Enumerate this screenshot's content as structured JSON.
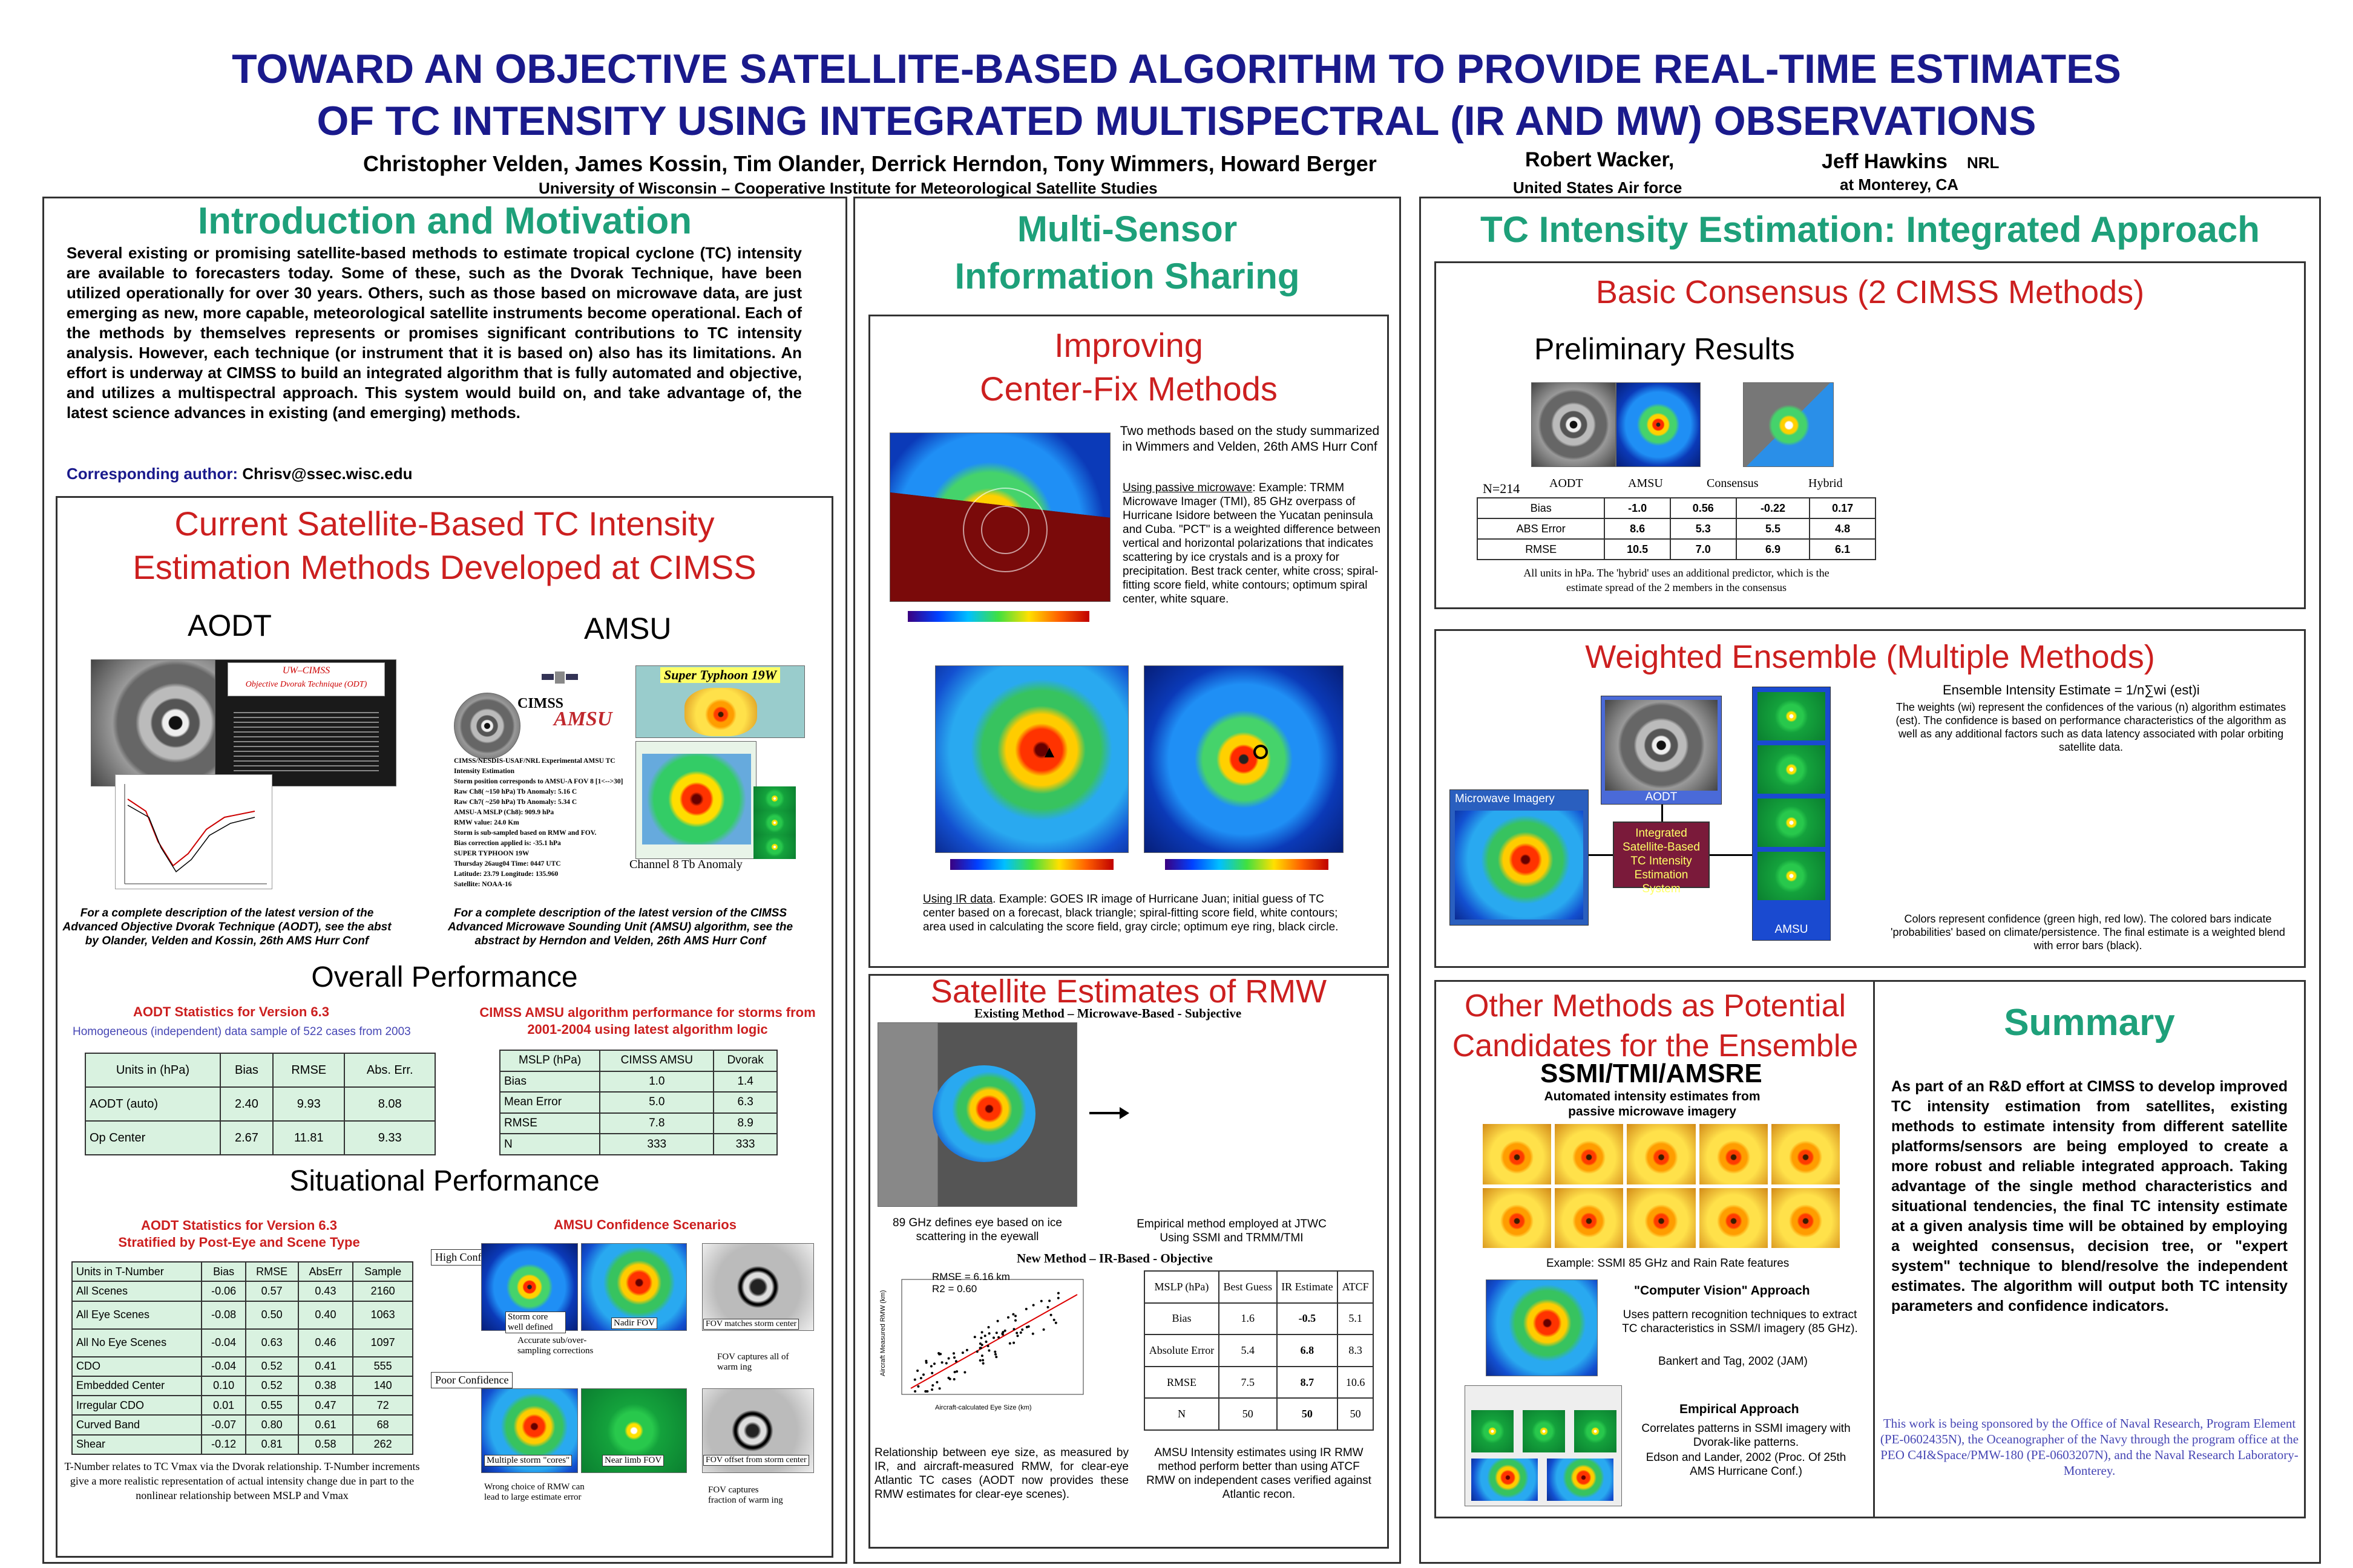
{
  "header": {
    "title_line1": "TOWARD AN OBJECTIVE SATELLITE-BASED ALGORITHM TO PROVIDE REAL-TIME ESTIMATES",
    "title_line2": "OF TC INTENSITY USING  INTEGRATED MULTISPECTRAL (IR AND MW) OBSERVATIONS",
    "authors": "Christopher Velden, James Kossin, Tim Olander, Derrick Herndon, Tony Wimmers, Howard Berger",
    "affiliation": "University of Wisconsin – Cooperative Institute for Meteorological Satellite Studies",
    "author2": "Robert Wacker,",
    "affil2": "United States Air force",
    "author3": "Jeff Hawkins",
    "author3_org": "NRL",
    "affil3": "at Monterey, CA"
  },
  "intro": {
    "heading": "Introduction and Motivation",
    "text": "Several existing or promising satellite-based methods to estimate tropical cyclone (TC) intensity are available to forecasters today. Some of these, such as the Dvorak Technique, have been utilized operationally for over 30 years. Others, such as those based on microwave data, are just emerging as new, more capable, meteorological satellite instruments become operational. Each of the methods by themselves represents or promises significant contributions to TC intensity analysis. However, each technique (or instrument that it is based on) also has its limitations. An effort is underway at CIMSS to build an integrated algorithm that is fully automated and objective, and utilizes a multispectral approach. This system would build on, and take advantage of, the latest science advances in existing (and emerging) methods.",
    "corr_label": "Corresponding author:",
    "corr_email": "Chrisv@ssec.wisc.edu"
  },
  "current": {
    "heading1": "Current Satellite-Based TC Intensity",
    "heading2": "Estimation Methods Developed at CIMSS",
    "aodt_label": "AODT",
    "amsu_label": "AMSU",
    "aodt_img_title": "UW–CIMSS",
    "aodt_img_sub": "Objective Dvorak Technique (ODT)",
    "amsu_logo": "CIMSS",
    "amsu_logo2": "AMSU",
    "super_typhoon": "Super Typhoon 19W",
    "amsu_readout": [
      "CIMSS/NESDIS-USAF/NRL Experimental AMSU TC Intensity Estimation",
      "Storm position corresponds to AMSU-A FOV  8  [1<-->30]",
      "Raw Ch8( ~150 hPa) Tb Anomaly: 5.16 C",
      "Raw Ch7( ~250 hPa) Tb Anomaly: 5.34 C",
      "AMSU-A MSLP (Ch8):               909.9 hPa",
      "RMW value:  24.0 Km",
      "Storm is sub-sampled based on RMW and FOV.",
      "Bias correction applied is: -35.1 hPa",
      "SUPER TYPHOON 19W",
      "Thursday 26aug04 Time: 0447 UTC",
      "Latitude: 23.79 Longitude: 135.960",
      "Satellite: NOAA-16"
    ],
    "channel_label": "Channel 8 Tb Anomaly",
    "aodt_caption": "For a complete description of the latest version of the Advanced Objective Dvorak Technique (AODT), see the abst by Olander, Velden and Kossin, 26th AMS Hurr Conf",
    "amsu_caption": "For a complete description of the latest version of the CIMSS Advanced Microwave Sounding Unit (AMSU) algorithm, see the abstract by Herndon and Velden, 26th AMS Hurr Conf"
  },
  "overall": {
    "heading": "Overall Performance",
    "aodt_title": "AODT Statistics for Version 6.3",
    "aodt_sub": "Homogeneous (independent) data sample of 522 cases from 2003",
    "aodt_headers": [
      "Units in (hPa)",
      "Bias",
      "RMSE",
      "Abs. Err."
    ],
    "aodt_rows": [
      [
        "AODT (auto)",
        "2.40",
        "9.93",
        "8.08"
      ],
      [
        "Op Center",
        "2.67",
        "11.81",
        "9.33"
      ]
    ],
    "amsu_title": "CIMSS AMSU algorithm performance for storms from 2001-2004 using latest algorithm logic",
    "amsu_headers": [
      "MSLP (hPa)",
      "CIMSS AMSU",
      "Dvorak"
    ],
    "amsu_rows": [
      [
        "Bias",
        "1.0",
        "1.4"
      ],
      [
        "Mean Error",
        "5.0",
        "6.3"
      ],
      [
        "RMSE",
        "7.8",
        "8.9"
      ],
      [
        "N",
        "333",
        "333"
      ]
    ]
  },
  "situational": {
    "heading": "Situational Performance",
    "aodt_title1": "AODT Statistics for Version 6.3",
    "aodt_title2": "Stratified by Post-Eye and Scene Type",
    "headers": [
      "Units in T-Number",
      "Bias",
      "RMSE",
      "AbsErr",
      "Sample"
    ],
    "rows": [
      [
        "All Scenes",
        "-0.06",
        "0.57",
        "0.43",
        "2160"
      ],
      [
        "All Eye Scenes",
        "-0.08",
        "0.50",
        "0.40",
        "1063"
      ],
      [
        "All No Eye Scenes",
        "-0.04",
        "0.63",
        "0.46",
        "1097"
      ],
      [
        "CDO",
        "-0.04",
        "0.52",
        "0.41",
        "555"
      ],
      [
        "Embedded Center",
        "0.10",
        "0.52",
        "0.38",
        "140"
      ],
      [
        "Irregular CDO",
        "0.01",
        "0.55",
        "0.47",
        "72"
      ],
      [
        "Curved Band",
        "-0.07",
        "0.80",
        "0.61",
        "68"
      ],
      [
        "Shear",
        "-0.12",
        "0.81",
        "0.58",
        "262"
      ]
    ],
    "note": "T-Number relates to TC Vmax via the Dvorak relationship. T-Number increments give a more realistic representation of actual intensity change due in part to the nonlinear relationship between MSLP and Vmax",
    "amsu_title": "AMSU Confidence Scenarios",
    "high_conf": "High Confidence",
    "poor_conf": "Poor Confidence",
    "lbl_core": "Storm core well defined",
    "lbl_nadir": "Nadir FOV",
    "lbl_matches": "FOV matches storm center",
    "lbl_accurate": "Accurate sub/over-sampling corrections",
    "lbl_captures": "FOV captures all of warm ing",
    "lbl_multiple": "Multiple storm \"cores\"",
    "lbl_nearlimb": "Near limb FOV",
    "lbl_offset": "FOV offset from storm center",
    "lbl_wrong": "Wrong choice of RMW can lead to large estimate error",
    "lbl_fraction": "FOV captures fraction of warm ing"
  },
  "multisensor": {
    "heading1": "Multi-Sensor",
    "heading2": "Information Sharing",
    "cf_heading1": "Improving",
    "cf_heading2": "Center-Fix Methods",
    "cf_intro": "Two methods based on the study summarized in Wimmers and Velden, 26th AMS Hurr Conf",
    "cf_pm_label": "Using passive microwave",
    "cf_pm_text": ": Example: TRMM Microwave Imager (TMI), 85 GHz overpass of Hurricane Isidore between the Yucatan peninsula and Cuba. \"PCT\" is a weighted difference between vertical and horizontal polarizations that indicates scattering by ice crystals and is a proxy for precipitation. Best track center, white cross; spiral-fitting score field, white contours; optimum spiral center, white square.",
    "cf_ir_label": "Using IR data",
    "cf_ir_text": ". Example: GOES IR image of Hurricane Juan; initial guess of TC center based on a forecast, black triangle; spiral-fitting score field, white contours; area used in calculating the score field, gray circle; optimum eye ring, black circle.",
    "rmw_heading": "Satellite Estimates of RMW",
    "rmw_existing": "Existing Method – Microwave-Based - Subjective",
    "rmw_mw_caption": "89 GHz defines eye based on ice scattering in the eyewall",
    "rmw_empirical": "Empirical method employed at JTWC Using SSMI and TRMM/TMI",
    "rmw_new": "New Method – IR-Based - Objective",
    "rmw_scatter_rmse": "RMSE = 6.16 km",
    "rmw_scatter_r2": "R2 = 0.60",
    "rmw_scatter_xlabel": "Aircraft-calculated Eye Size (km)",
    "rmw_scatter_ylabel": "Aircraft Measured RMW (km)",
    "rmw_table_headers": [
      "MSLP (hPa)",
      "Best Guess",
      "IR Estimate",
      "ATCF"
    ],
    "rmw_table_rows": [
      [
        "Bias",
        "1.6",
        "-0.5",
        "5.1"
      ],
      [
        "Absolute Error",
        "5.4",
        "6.8",
        "8.3"
      ],
      [
        "RMSE",
        "7.5",
        "8.7",
        "10.6"
      ],
      [
        "N",
        "50",
        "50",
        "50"
      ]
    ],
    "rmw_bottom_left": "Relationship between eye size, as measured by IR, and aircraft-measured RMW, for clear-eye Atlantic TC cases (AODT now provides these RMW estimates for clear-eye scenes).",
    "rmw_bottom_right": "AMSU Intensity estimates using IR RMW method perform better than using ATCF RMW on independent cases verified against Atlantic recon."
  },
  "integrated": {
    "heading": "TC Intensity Estimation: Integrated Approach",
    "basic_heading": "Basic Consensus (2 CIMSS Methods)",
    "prelim": "Preliminary Results",
    "n_label": "N=214",
    "cons_headers": [
      "AODT",
      "AMSU",
      "Consensus",
      "Hybrid"
    ],
    "cons_rows": [
      [
        "Bias",
        "-1.0",
        "0.56",
        "-0.22",
        "0.17"
      ],
      [
        "ABS Error",
        "8.6",
        "5.3",
        "5.5",
        "4.8"
      ],
      [
        "RMSE",
        "10.5",
        "7.0",
        "6.9",
        "6.1"
      ]
    ],
    "cons_note": "All units in hPa. The 'hybrid' uses an additional predictor, which is the estimate spread of the 2 members in the consensus",
    "we_heading": "Weighted Ensemble  (Multiple Methods)",
    "we_formula": "Ensemble Intensity Estimate = 1/n∑wi (est)i",
    "we_text": "The weights (wi) represent the confidences of the various (n) algorithm estimates (est). The confidence is based on performance characteristics of the algorithm as well as any additional factors such as data latency associated with polar orbiting satellite data.",
    "we_mw": "Microwave Imagery",
    "we_aodt": "AODT",
    "we_system": "Integrated Satellite-Based TC Intensity Estimation System",
    "we_amsu": "AMSU",
    "we_colors": "Colors represent confidence (green high, red low). The colored bars indicate 'probabilities' based on climate/persistence. The final estimate is a weighted blend with error bars (black)."
  },
  "other": {
    "heading1": "Other Methods as Potential",
    "heading2": "Candidates for the Ensemble",
    "ssmi_heading": "SSMI/TMI/AMSRE",
    "ssmi_sub1": "Automated intensity estimates from",
    "ssmi_sub2": "passive microwave imagery",
    "ssmi_example": "Example: SSMI 85 GHz and Rain Rate features",
    "cv_heading": "\"Computer Vision\" Approach",
    "cv_text": "Uses pattern recognition techniques to extract TC characteristics in SSM/I imagery (85 GHz).",
    "cv_ref": "Bankert and Tag, 2002  (JAM)",
    "emp_heading": "Empirical Approach",
    "emp_text": "Correlates patterns in SSMI imagery with Dvorak-like patterns.",
    "emp_ref": "Edson and Lander, 2002 (Proc. Of 25th AMS Hurricane Conf.)"
  },
  "summary": {
    "heading": "Summary",
    "text": "As part of an R&D effort at CIMSS to develop improved TC intensity estimation from satellites, existing methods to estimate intensity from different satellite platforms/sensors are being employed to create a more robust and reliable integrated approach. Taking advantage of the single method characteristics and situational tendencies, the final TC intensity estimate at a given analysis time will be obtained by employing a weighted consensus, decision tree, or \"expert system\" technique to blend/resolve the independent estimates. The algorithm will output both TC intensity parameters and confidence indicators.",
    "sponsor": "This work is being sponsored by the Office of Naval Research, Program Element (PE-0602435N), the Oceanographer of the Navy through the program office at the PEO C4I&Space/PMW-180 (PE-0603207N), and the Naval Research Laboratory-Monterey."
  },
  "colors": {
    "title": "#1a1a8c",
    "teal_heading": "#1ea07a",
    "red_heading": "#cc1f1f",
    "table_green": "#d9f2e0"
  }
}
